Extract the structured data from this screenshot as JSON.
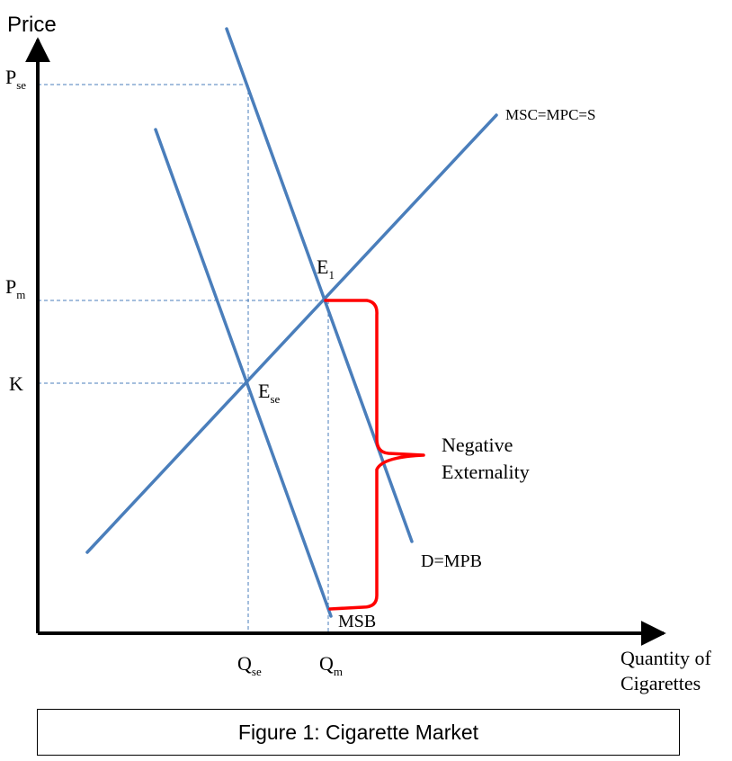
{
  "axes": {
    "y_title": "Price",
    "x_title_line1": "Quantity of",
    "x_title_line2": "Cigarettes"
  },
  "y_ticks": {
    "p_se_main": "P",
    "p_se_sub": "se",
    "p_m_main": "P",
    "p_m_sub": "m",
    "k": "K"
  },
  "x_ticks": {
    "q_se_main": "Q",
    "q_se_sub": "se",
    "q_m_main": "Q",
    "q_m_sub": "m"
  },
  "curves": {
    "supply": "MSC=MPC=S",
    "demand": "D=MPB",
    "msb": "MSB"
  },
  "points": {
    "e1_main": "E",
    "e1_sub": "1",
    "ese_main": "E",
    "ese_sub": "se"
  },
  "annotation": {
    "line1": "Negative",
    "line2": "Externality"
  },
  "caption": "Figure 1: Cigarette Market",
  "colors": {
    "curve": "#4a7ebb",
    "brace": "#ff0000",
    "guide": "#4a7ebb",
    "axis": "#000000"
  }
}
